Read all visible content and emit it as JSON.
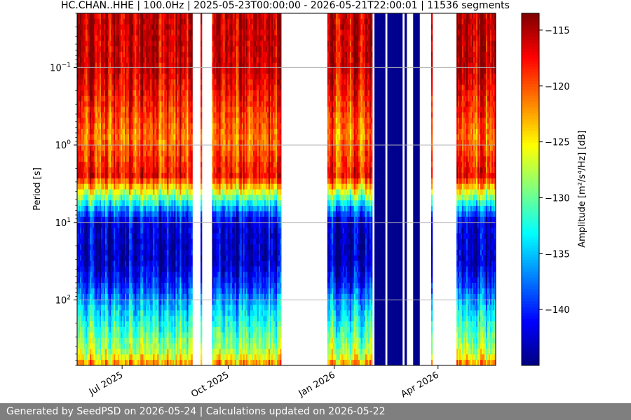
{
  "chart_data": {
    "type": "heatmap",
    "title": "HC.CHAN..HHE | 100.0Hz | 2025-05-23T00:00:00 - 2026-05-21T22:00:01 | 11536 segments",
    "xlabel": "",
    "ylabel": "Period [s]",
    "colorbar_label": "Amplitude [m²/s⁴/Hz] [dB]",
    "colormap": "jet",
    "x_range": [
      "2025-05-23",
      "2026-05-21"
    ],
    "x_ticks": [
      {
        "date": "2025-07-01",
        "label": "Jul 2025"
      },
      {
        "date": "2025-10-01",
        "label": "Oct 2025"
      },
      {
        "date": "2026-01-01",
        "label": "Jan 2026"
      },
      {
        "date": "2026-04-01",
        "label": "Apr 2026"
      }
    ],
    "y_scale": "log",
    "y_inverted": true,
    "y_range_s": [
      0.02,
      700
    ],
    "y_ticks": [
      {
        "value": 0.1,
        "base": "10",
        "exp": "−1"
      },
      {
        "value": 1,
        "base": "10",
        "exp": "0"
      },
      {
        "value": 10,
        "base": "10",
        "exp": "1"
      },
      {
        "value": 100,
        "base": "10",
        "exp": "2"
      }
    ],
    "colorbar_range_db": [
      -145,
      -113.5
    ],
    "colorbar_ticks": [
      {
        "value": -115,
        "label": "−115"
      },
      {
        "value": -120,
        "label": "−120"
      },
      {
        "value": -125,
        "label": "−125"
      },
      {
        "value": -130,
        "label": "−130"
      },
      {
        "value": -135,
        "label": "−135"
      },
      {
        "value": -140,
        "label": "−140"
      }
    ],
    "grid": true,
    "segments": [
      {
        "start": "2025-05-23",
        "end": "2025-08-31",
        "state": "data"
      },
      {
        "start": "2025-09-07",
        "end": "2025-09-08",
        "state": "data"
      },
      {
        "start": "2025-09-17",
        "end": "2025-11-16",
        "state": "data"
      },
      {
        "start": "2025-12-26",
        "end": "2026-02-03",
        "state": "data"
      },
      {
        "start": "2026-02-03",
        "end": "2026-03-16",
        "state": "sparse_low"
      },
      {
        "start": "2026-03-26",
        "end": "2026-03-27",
        "state": "data"
      },
      {
        "start": "2026-04-17",
        "end": "2026-05-21",
        "state": "data"
      }
    ],
    "amplitude_profile_db": [
      {
        "period_s": 0.02,
        "db": -115.5
      },
      {
        "period_s": 0.1,
        "db": -115.8
      },
      {
        "period_s": 0.3,
        "db": -118.5
      },
      {
        "period_s": 0.8,
        "db": -121
      },
      {
        "period_s": 2.5,
        "db": -117.5
      },
      {
        "period_s": 4,
        "db": -126
      },
      {
        "period_s": 7,
        "db": -137
      },
      {
        "period_s": 10,
        "db": -142
      },
      {
        "period_s": 30,
        "db": -143
      },
      {
        "period_s": 60,
        "db": -140
      },
      {
        "period_s": 120,
        "db": -135
      },
      {
        "period_s": 250,
        "db": -131
      },
      {
        "period_s": 500,
        "db": -127
      },
      {
        "period_s": 700,
        "db": -121
      }
    ]
  },
  "footer": {
    "text": "Generated by SeedPSD on 2026-05-24 | Calculations updated on 2026-05-22"
  }
}
